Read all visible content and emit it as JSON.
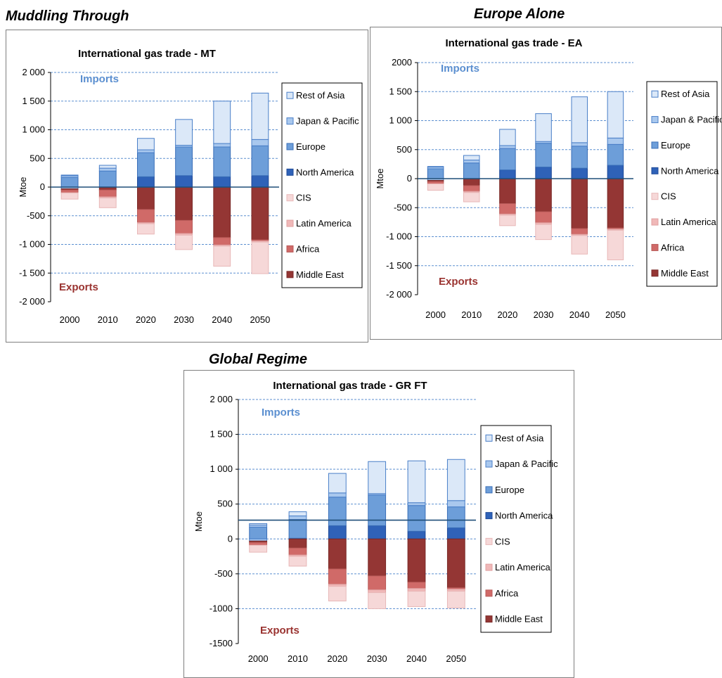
{
  "scenarios": [
    {
      "title": "Muddling Through"
    },
    {
      "title": "Europe Alone"
    },
    {
      "title": "Global Regime"
    }
  ],
  "legend_entries": [
    {
      "name": "Rest of Asia",
      "color": "#dbe8f8",
      "stroke": "#4a7fc8"
    },
    {
      "name": "Japan & Pacific",
      "color": "#a9c8ee",
      "stroke": "#4a7fc8"
    },
    {
      "name": "Europe",
      "color": "#6d9ed9",
      "stroke": "#3a6fb8"
    },
    {
      "name": "North America",
      "color": "#2f62b8",
      "stroke": "#1f4a98"
    },
    {
      "name": "CIS",
      "color": "#f6d8d8",
      "stroke": "#e8b8b8"
    },
    {
      "name": "Latin America",
      "color": "#f0b8b8",
      "stroke": "#e0a0a0"
    },
    {
      "name": "Africa",
      "color": "#d06a68",
      "stroke": "#b85a58"
    },
    {
      "name": "Middle East",
      "color": "#943634",
      "stroke": "#7a2a28"
    }
  ],
  "chart_data": [
    {
      "type": "bar",
      "title": "International gas trade - MT",
      "ylabel": "Mtoe",
      "ylim": [
        -2000,
        2000
      ],
      "yticks": [
        "2 000",
        "1 500",
        "1 000",
        "500",
        "0",
        "-500",
        "-1 000",
        "-1 500",
        "-2 000"
      ],
      "ytick_values": [
        2000,
        1500,
        1000,
        500,
        0,
        -500,
        -1000,
        -1500,
        -2000
      ],
      "reference_line": 0,
      "annotations": {
        "imports": "Imports",
        "exports": "Exports"
      },
      "categories": [
        "2000",
        "2010",
        "2020",
        "2030",
        "2040",
        "2050"
      ],
      "stacked": true,
      "series": [
        {
          "name": "North America",
          "values": [
            0,
            0,
            180,
            200,
            180,
            200
          ]
        },
        {
          "name": "Europe",
          "values": [
            170,
            280,
            420,
            500,
            520,
            520
          ]
        },
        {
          "name": "Japan & Pacific",
          "values": [
            30,
            50,
            50,
            30,
            60,
            110
          ]
        },
        {
          "name": "Rest of Asia",
          "values": [
            10,
            50,
            200,
            450,
            740,
            810
          ]
        },
        {
          "name": "Middle East",
          "values": [
            -20,
            -50,
            -390,
            -580,
            -880,
            -920
          ]
        },
        {
          "name": "Africa",
          "values": [
            -50,
            -120,
            -230,
            -230,
            -130,
            -20
          ]
        },
        {
          "name": "Latin America",
          "values": [
            0,
            -20,
            -20,
            -30,
            -20,
            -20
          ]
        },
        {
          "name": "CIS",
          "values": [
            -110,
            -170,
            -180,
            -250,
            -350,
            -550
          ]
        },
        {
          "name": "Imports",
          "values": [
            -30,
            0,
            0,
            0,
            0,
            0
          ]
        }
      ]
    },
    {
      "type": "bar",
      "title": "International gas trade - EA",
      "ylabel": "Mtoe",
      "ylim": [
        -2000,
        2000
      ],
      "yticks": [
        "2000",
        "1 500",
        "1 000",
        "500",
        "0",
        "-500",
        "-1 000",
        "-1 500",
        "-2 000"
      ],
      "ytick_values": [
        2000,
        1500,
        1000,
        500,
        0,
        -500,
        -1000,
        -1500,
        -2000
      ],
      "reference_line": 0,
      "annotations": {
        "imports": "Imports",
        "exports": "Exports"
      },
      "categories": [
        "2000",
        "2010",
        "2020",
        "2030",
        "2040",
        "2050"
      ],
      "stacked": true,
      "series": [
        {
          "name": "North America",
          "values": [
            0,
            0,
            150,
            200,
            180,
            230
          ]
        },
        {
          "name": "Europe",
          "values": [
            170,
            270,
            370,
            410,
            380,
            360
          ]
        },
        {
          "name": "Japan & Pacific",
          "values": [
            30,
            50,
            50,
            30,
            60,
            110
          ]
        },
        {
          "name": "Rest of Asia",
          "values": [
            10,
            80,
            280,
            480,
            790,
            800
          ]
        },
        {
          "name": "Middle East",
          "values": [
            -20,
            -120,
            -430,
            -570,
            -860,
            -850
          ]
        },
        {
          "name": "Africa",
          "values": [
            -40,
            -100,
            -180,
            -190,
            -100,
            -20
          ]
        },
        {
          "name": "Latin America",
          "values": [
            0,
            -20,
            -20,
            -30,
            -20,
            -20
          ]
        },
        {
          "name": "CIS",
          "values": [
            -110,
            -160,
            -180,
            -260,
            -320,
            -510
          ]
        },
        {
          "name": "Imports",
          "values": [
            -30,
            0,
            0,
            0,
            0,
            0
          ]
        }
      ]
    },
    {
      "type": "bar",
      "title": "International gas trade - GR FT",
      "ylabel": "Mtoe",
      "ylim": [
        -1500,
        2000
      ],
      "yticks": [
        "2 000",
        "1 500",
        "1 000",
        "500",
        "0",
        "-500",
        "-1000",
        "-1500"
      ],
      "ytick_values": [
        2000,
        1500,
        1000,
        500,
        0,
        -500,
        -1000,
        -1500
      ],
      "reference_line": 270,
      "annotations": {
        "imports": "Imports",
        "exports": "Exports"
      },
      "categories": [
        "2000",
        "2010",
        "2020",
        "2030",
        "2040",
        "2050"
      ],
      "stacked": true,
      "series": [
        {
          "name": "North America",
          "values": [
            0,
            10,
            190,
            190,
            110,
            160
          ]
        },
        {
          "name": "Europe",
          "values": [
            170,
            270,
            410,
            440,
            370,
            300
          ]
        },
        {
          "name": "Japan & Pacific",
          "values": [
            30,
            50,
            60,
            20,
            40,
            90
          ]
        },
        {
          "name": "Rest of Asia",
          "values": [
            20,
            60,
            280,
            460,
            600,
            590
          ]
        },
        {
          "name": "Middle East",
          "values": [
            -20,
            -130,
            -430,
            -530,
            -620,
            -700
          ]
        },
        {
          "name": "Africa",
          "values": [
            -40,
            -100,
            -220,
            -200,
            -90,
            -20
          ]
        },
        {
          "name": "Latin America",
          "values": [
            0,
            -20,
            -30,
            -40,
            -40,
            -30
          ]
        },
        {
          "name": "CIS",
          "values": [
            -100,
            -140,
            -210,
            -230,
            -220,
            -240
          ]
        },
        {
          "name": "Imports",
          "values": [
            -30,
            0,
            0,
            0,
            0,
            0
          ]
        }
      ]
    }
  ]
}
